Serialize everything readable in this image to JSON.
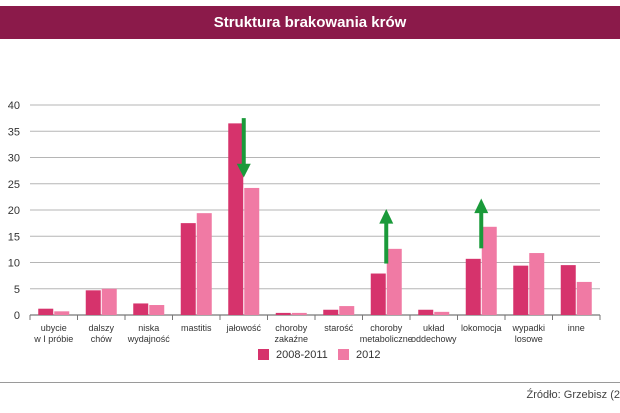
{
  "title": "Struktura brakowania krów",
  "source": "Źródło: Grzebisz (2",
  "colors": {
    "title_bg": "#8b1a4a",
    "series_2008_2011": "#d6336c",
    "series_2012": "#f07aa4",
    "arrow": "#1a9a3a"
  },
  "chart_data": {
    "type": "bar",
    "title": "Struktura brakowania krów",
    "xlabel": "",
    "ylabel": "",
    "ylim": [
      0,
      40
    ],
    "yticks": [
      0,
      5,
      10,
      15,
      20,
      25,
      30,
      35,
      40
    ],
    "grid": true,
    "legend_position": "bottom",
    "categories": [
      [
        "ubycie",
        "w I próbie"
      ],
      [
        "dalszy",
        "chów"
      ],
      [
        "niska",
        "wydajność"
      ],
      [
        "mastitis"
      ],
      [
        "jałowość"
      ],
      [
        "choroby",
        "zakaźne"
      ],
      [
        "starość"
      ],
      [
        "choroby",
        "metaboliczne"
      ],
      [
        "układ",
        "oddechowy"
      ],
      [
        "lokomocja"
      ],
      [
        "wypadki",
        "losowe"
      ],
      [
        "inne"
      ]
    ],
    "series": [
      {
        "name": "2008-2011",
        "values": [
          1.2,
          4.7,
          2.2,
          17.5,
          36.5,
          0.4,
          1.0,
          7.9,
          1.0,
          10.7,
          9.4,
          9.5
        ]
      },
      {
        "name": "2012",
        "values": [
          0.7,
          5.0,
          1.9,
          19.4,
          24.2,
          0.4,
          1.7,
          12.6,
          0.6,
          16.8,
          11.8,
          6.3
        ]
      }
    ],
    "annotations": [
      {
        "category_index": 4,
        "direction": "down"
      },
      {
        "category_index": 7,
        "direction": "up"
      },
      {
        "category_index": 9,
        "direction": "up"
      }
    ]
  }
}
